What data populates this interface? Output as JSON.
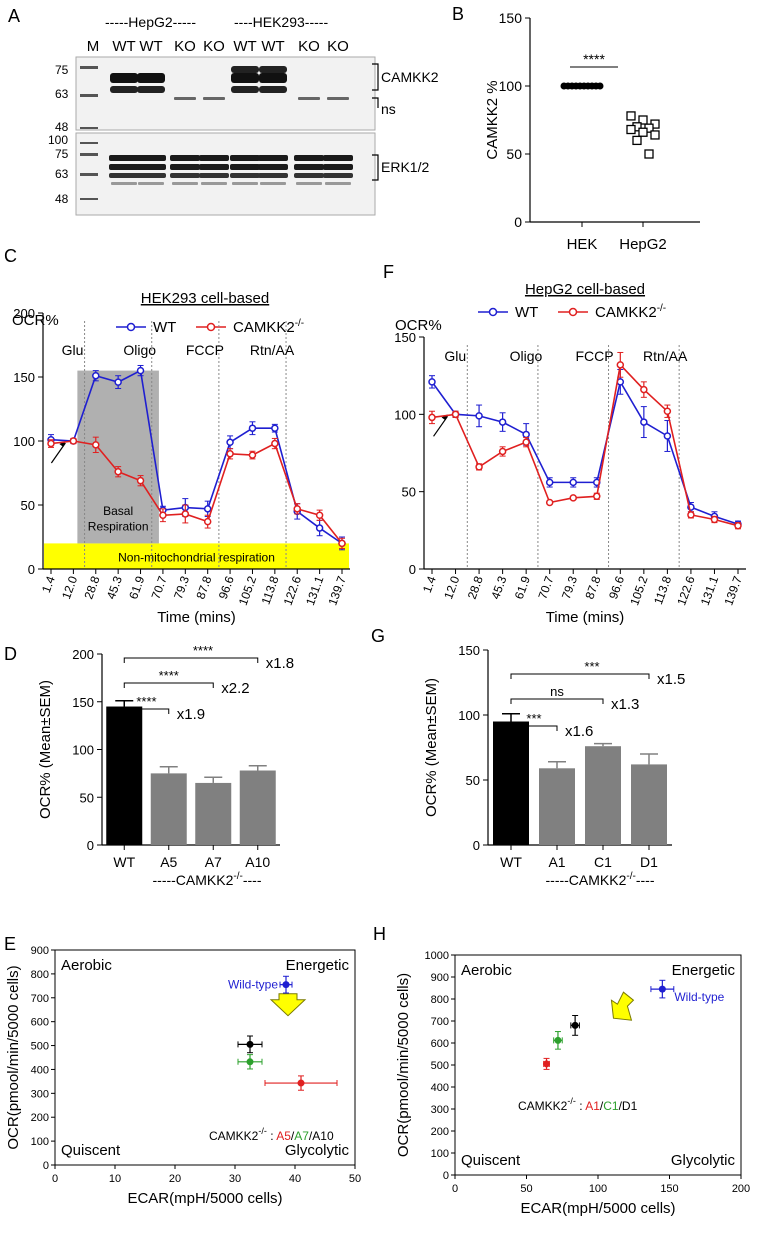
{
  "figure": {
    "panel_letters": [
      "A",
      "B",
      "C",
      "D",
      "E",
      "F",
      "G",
      "H"
    ]
  },
  "blot": {
    "lane_labels": [
      "M",
      "WT",
      "WT",
      "KO",
      "KO",
      "WT",
      "WT",
      "KO",
      "KO"
    ],
    "group_labels": [
      "-----HepG2-----",
      "----HEK293-----"
    ],
    "markers_top": [
      "75",
      "63",
      "48"
    ],
    "markers_bottom": [
      "100",
      "75",
      "63",
      "48"
    ],
    "band_labels": [
      "CAMKK2",
      "ns",
      "ERK1/2"
    ]
  },
  "colors": {
    "wt": "#1f1fd1",
    "ko": "#e02020",
    "black": "#000000",
    "gray": "#808080",
    "green": "#2ca02c",
    "yellow": "#ffff00",
    "shade": "#b0b0b0"
  },
  "chart_data": [
    {
      "id": "B",
      "type": "scatter",
      "title": "",
      "ylabel": "CAMKK2 %",
      "xlabel": "",
      "categories": [
        "HEK",
        "HepG2"
      ],
      "ylim": [
        0,
        150
      ],
      "yticks": [
        "0",
        "50",
        "100",
        "150"
      ],
      "series": [
        {
          "name": "HEK",
          "marker": "filled-circle",
          "values": [
            100,
            100,
            100,
            100,
            100,
            100,
            100,
            100,
            100,
            100
          ]
        },
        {
          "name": "HepG2",
          "marker": "open-square",
          "values": [
            78,
            75,
            72,
            70,
            69,
            68,
            66,
            64,
            60,
            50
          ]
        }
      ],
      "annotations": [
        "****"
      ]
    },
    {
      "id": "C",
      "type": "line",
      "title": "HEK293 cell-based",
      "ylabel": "OCR%",
      "xlabel": "Time (mins)",
      "ylim": [
        0,
        200
      ],
      "yticks": [
        "0",
        "50",
        "100",
        "150",
        "200"
      ],
      "x": [
        "1.4",
        "12.0",
        "28.8",
        "45.3",
        "61.9",
        "70.7",
        "79.3",
        "87.8",
        "96.6",
        "105.2",
        "113.8",
        "122.6",
        "131.1",
        "139.7"
      ],
      "injections": [
        "Glu",
        "Oligo",
        "FCCP",
        "Rtn/AA"
      ],
      "series": [
        {
          "name": "WT",
          "color": "#1f1fd1",
          "values": [
            101,
            100,
            151,
            146,
            155,
            46,
            48,
            47,
            99,
            110,
            110,
            45,
            32,
            20
          ],
          "err": [
            4,
            2,
            4,
            5,
            4,
            3,
            7,
            6,
            5,
            5,
            3,
            6,
            6,
            5
          ]
        },
        {
          "name": "CAMKK2-/-",
          "color": "#e02020",
          "values": [
            98,
            100,
            97,
            76,
            69,
            42,
            43,
            37,
            90,
            89,
            98,
            47,
            42,
            20
          ],
          "err": [
            3,
            2,
            6,
            4,
            4,
            5,
            7,
            5,
            4,
            3,
            4,
            4,
            4,
            4
          ]
        }
      ],
      "legend": {
        "wt": "WT",
        "ko_base": "CAMKK2",
        "ko_sup": "-/-"
      },
      "annotations": {
        "basal_line1": "Basal",
        "basal_line2": "Respiration",
        "nonmito": "Non-mitochondrial respiration"
      }
    },
    {
      "id": "F",
      "type": "line",
      "title": "HepG2 cell-based",
      "ylabel": "OCR%",
      "xlabel": "Time (mins)",
      "ylim": [
        0,
        150
      ],
      "yticks": [
        "0",
        "50",
        "100",
        "150"
      ],
      "x": [
        "1.4",
        "12.0",
        "28.8",
        "45.3",
        "61.9",
        "70.7",
        "79.3",
        "87.8",
        "96.6",
        "105.2",
        "113.8",
        "122.6",
        "131.1",
        "139.7"
      ],
      "injections": [
        "Glu",
        "Oligo",
        "FCCP",
        "Rtn/AA"
      ],
      "series": [
        {
          "name": "WT",
          "color": "#1f1fd1",
          "values": [
            121,
            100,
            99,
            95,
            87,
            56,
            56,
            56,
            121,
            95,
            86,
            40,
            34,
            29
          ],
          "err": [
            4,
            2,
            7,
            6,
            7,
            3,
            3,
            3,
            8,
            10,
            10,
            3,
            3,
            2
          ]
        },
        {
          "name": "CAMKK2-/-",
          "color": "#e02020",
          "values": [
            98,
            100,
            66,
            76,
            82,
            43,
            46,
            47,
            132,
            116,
            102,
            35,
            32,
            28
          ],
          "err": [
            4,
            2,
            2,
            3,
            3,
            1,
            1,
            2,
            8,
            5,
            4,
            2,
            2,
            2
          ]
        }
      ],
      "legend": {
        "wt": "WT",
        "ko_base": "CAMKK2",
        "ko_sup": "-/-"
      }
    },
    {
      "id": "D",
      "type": "bar",
      "title": "",
      "ylabel": "OCR% (Mean±SEM)",
      "xlabel": "-----CAMKK2-/- ----",
      "categories": [
        "WT",
        "A5",
        "A7",
        "A10"
      ],
      "values": [
        145,
        75,
        65,
        78
      ],
      "err": [
        6,
        7,
        6,
        5
      ],
      "colors": [
        "#000000",
        "#808080",
        "#808080",
        "#808080"
      ],
      "ylim": [
        0,
        200
      ],
      "yticks": [
        "0",
        "50",
        "100",
        "150",
        "200"
      ],
      "comparisons": [
        {
          "stars": "****",
          "fold": "x1.8",
          "to": 3
        },
        {
          "stars": "****",
          "fold": "x2.2",
          "to": 2
        },
        {
          "stars": "****",
          "fold": "x1.9",
          "to": 1
        }
      ],
      "group_label": {
        "base": "-----CAMKK2",
        "sup": "-/-",
        "tail": "----"
      }
    },
    {
      "id": "G",
      "type": "bar",
      "title": "",
      "ylabel": "OCR% (Mean±SEM)",
      "xlabel": "-----CAMKK2-/- ----",
      "categories": [
        "WT",
        "A1",
        "C1",
        "D1"
      ],
      "values": [
        95,
        59,
        76,
        62
      ],
      "err": [
        6,
        5,
        2,
        8
      ],
      "colors": [
        "#000000",
        "#808080",
        "#808080",
        "#808080"
      ],
      "ylim": [
        0,
        150
      ],
      "yticks": [
        "0",
        "50",
        "100",
        "150"
      ],
      "comparisons": [
        {
          "stars": "***",
          "fold": "x1.5",
          "to": 3
        },
        {
          "stars": "ns",
          "fold": "x1.3",
          "to": 2
        },
        {
          "stars": "***",
          "fold": "x1.6",
          "to": 1
        }
      ],
      "group_label": {
        "base": "-----CAMKK2",
        "sup": "-/-",
        "tail": "----"
      }
    },
    {
      "id": "E",
      "type": "scatter",
      "title": "",
      "xlabel": "ECAR(mpH/5000 cells)",
      "ylabel": "OCR(pmool/min/5000 cells)",
      "xlim": [
        0,
        50
      ],
      "ylim": [
        0,
        900
      ],
      "xticks": [
        "0",
        "10",
        "20",
        "30",
        "40",
        "50"
      ],
      "yticks": [
        "0",
        "100",
        "200",
        "300",
        "400",
        "500",
        "600",
        "700",
        "800",
        "900"
      ],
      "points": [
        {
          "name": "Wild-type",
          "x": 38.5,
          "y": 755,
          "xerr": 1,
          "yerr": 35,
          "color": "#1f1fd1"
        },
        {
          "name": "A5",
          "x": 41,
          "y": 343,
          "xerr": 6,
          "yerr": 30,
          "color": "#e02020"
        },
        {
          "name": "A7",
          "x": 32.5,
          "y": 432,
          "xerr": 2,
          "yerr": 30,
          "color": "#2ca02c"
        },
        {
          "name": "A10",
          "x": 32.5,
          "y": 505,
          "xerr": 2,
          "yerr": 35,
          "color": "#000000"
        }
      ],
      "arrow": {
        "x": 39,
        "y": 650,
        "dir": "down"
      },
      "quadrants": [
        "Aerobic",
        "Energetic",
        "Quiscent",
        "Glycolytic"
      ],
      "wt_label": "Wild-type",
      "ko_label": {
        "base": "CAMKK2",
        "sup": "-/-",
        "sep": " : ",
        "names": [
          "A5",
          "A7",
          "A10"
        ],
        "slash": "/"
      }
    },
    {
      "id": "H",
      "type": "scatter",
      "title": "",
      "xlabel": "ECAR(mpH/5000 cells)",
      "ylabel": "OCR(pmool/min/5000 cells)",
      "xlim": [
        0,
        200
      ],
      "ylim": [
        0,
        1000
      ],
      "xticks": [
        "0",
        "50",
        "100",
        "150",
        "200"
      ],
      "yticks": [
        "0",
        "100",
        "200",
        "300",
        "400",
        "500",
        "600",
        "700",
        "800",
        "900",
        "1000"
      ],
      "points": [
        {
          "name": "Wild-type",
          "x": 145,
          "y": 845,
          "xerr": 8,
          "yerr": 40,
          "color": "#1f1fd1"
        },
        {
          "name": "A1",
          "x": 64,
          "y": 505,
          "xerr": 2,
          "yerr": 25,
          "color": "#e02020"
        },
        {
          "name": "C1",
          "x": 72,
          "y": 612,
          "xerr": 3,
          "yerr": 40,
          "color": "#2ca02c"
        },
        {
          "name": "D1",
          "x": 84,
          "y": 680,
          "xerr": 3,
          "yerr": 45,
          "color": "#000000"
        }
      ],
      "arrow": {
        "x": 115,
        "y": 740,
        "dir": "down-left"
      },
      "quadrants": [
        "Aerobic",
        "Energetic",
        "Quiscent",
        "Glycolytic"
      ],
      "wt_label": "Wild-type",
      "ko_label": {
        "base": "CAMKK2",
        "sup": "-/-",
        "sep": " : ",
        "names": [
          "A1",
          "C1",
          "D1"
        ],
        "slash": "/"
      }
    }
  ]
}
